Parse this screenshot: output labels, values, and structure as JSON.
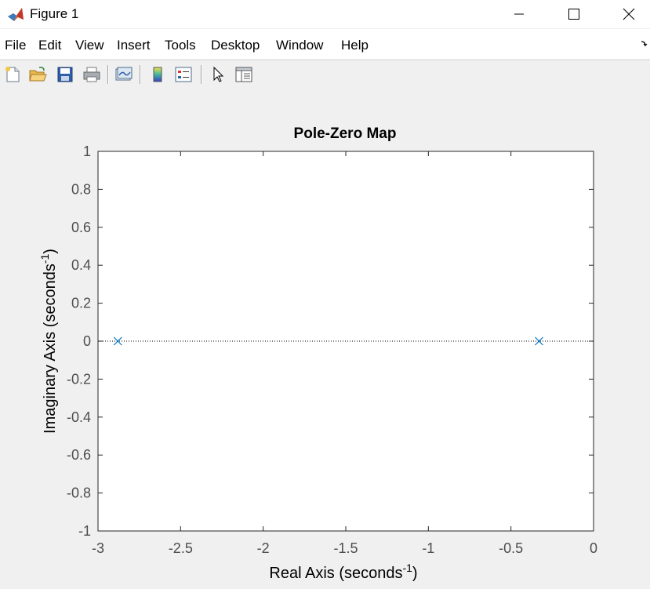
{
  "window": {
    "title": "Figure 1",
    "controls": [
      "minimize",
      "maximize",
      "close"
    ]
  },
  "menubar": {
    "items": [
      {
        "label": "File"
      },
      {
        "label": "Edit"
      },
      {
        "label": "View"
      },
      {
        "label": "Insert"
      },
      {
        "label": "Tools"
      },
      {
        "label": "Desktop"
      },
      {
        "label": "Window"
      },
      {
        "label": "Help"
      }
    ]
  },
  "toolbar": {
    "buttons": [
      {
        "icon": "new-figure-icon"
      },
      {
        "icon": "open-file-icon"
      },
      {
        "icon": "save-icon"
      },
      {
        "icon": "print-icon"
      },
      {
        "icon": "link-plot-icon"
      },
      {
        "icon": "insert-colorbar-icon"
      },
      {
        "icon": "insert-legend-icon"
      },
      {
        "icon": "edit-plot-icon"
      },
      {
        "icon": "property-inspector-icon"
      }
    ]
  },
  "chart_data": {
    "type": "scatter",
    "title": "Pole-Zero Map",
    "xlabel": "Real Axis (seconds",
    "ylabel": "Imaginary Axis (seconds",
    "label_exponent": "-1",
    "label_close": ")",
    "xlim": [
      -3,
      0
    ],
    "ylim": [
      -1,
      1
    ],
    "xticks": [
      -3,
      -2.5,
      -2,
      -1.5,
      -1,
      -0.5,
      0
    ],
    "yticks": [
      -1,
      -0.8,
      -0.6,
      -0.4,
      -0.2,
      0,
      0.2,
      0.4,
      0.6,
      0.8,
      1
    ],
    "xtick_labels": [
      "-3",
      "-2.5",
      "-2",
      "-1.5",
      "-1",
      "-0.5",
      "0"
    ],
    "ytick_labels": [
      "-1",
      "-0.8",
      "-0.6",
      "-0.4",
      "-0.2",
      "0",
      "0.2",
      "0.4",
      "0.6",
      "0.8",
      "1"
    ],
    "series": [
      {
        "marker": "x",
        "color": "#0072bd",
        "points": [
          {
            "x": -2.88,
            "y": 0
          },
          {
            "x": -0.33,
            "y": 0
          }
        ]
      }
    ],
    "reference_line": {
      "y": 0,
      "style": "dotted"
    },
    "grid": false
  }
}
